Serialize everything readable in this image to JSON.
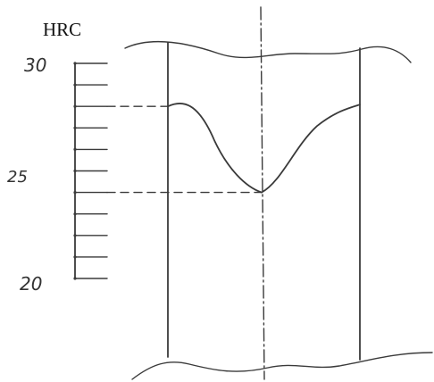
{
  "figure": {
    "unit_label": "HRC",
    "scale": {
      "min": 20,
      "max": 30,
      "tick_step": 1,
      "labels": [
        "30",
        "25",
        "20"
      ]
    },
    "hardness_profile": {
      "surface_value": 28,
      "center_value": 24
    }
  }
}
